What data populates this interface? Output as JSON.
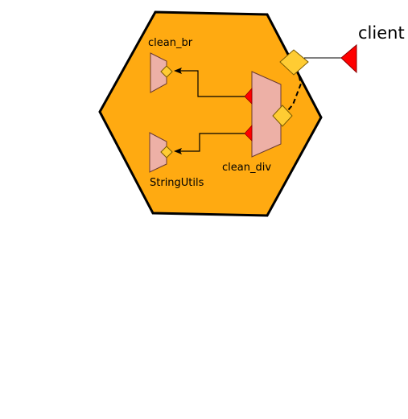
{
  "diagram": {
    "components": {
      "clean_br": {
        "label": "clean_br"
      },
      "string_utils": {
        "label": "StringUtils"
      },
      "clean_div": {
        "label": "clean_div"
      }
    },
    "external": {
      "client": {
        "label": "client"
      }
    }
  },
  "colors": {
    "composite_fill": "#FFAA11",
    "component_fill": "#EDB0A6",
    "service_port": "#FFCC33",
    "reference_port": "#FF0000",
    "wire": "#000000"
  }
}
